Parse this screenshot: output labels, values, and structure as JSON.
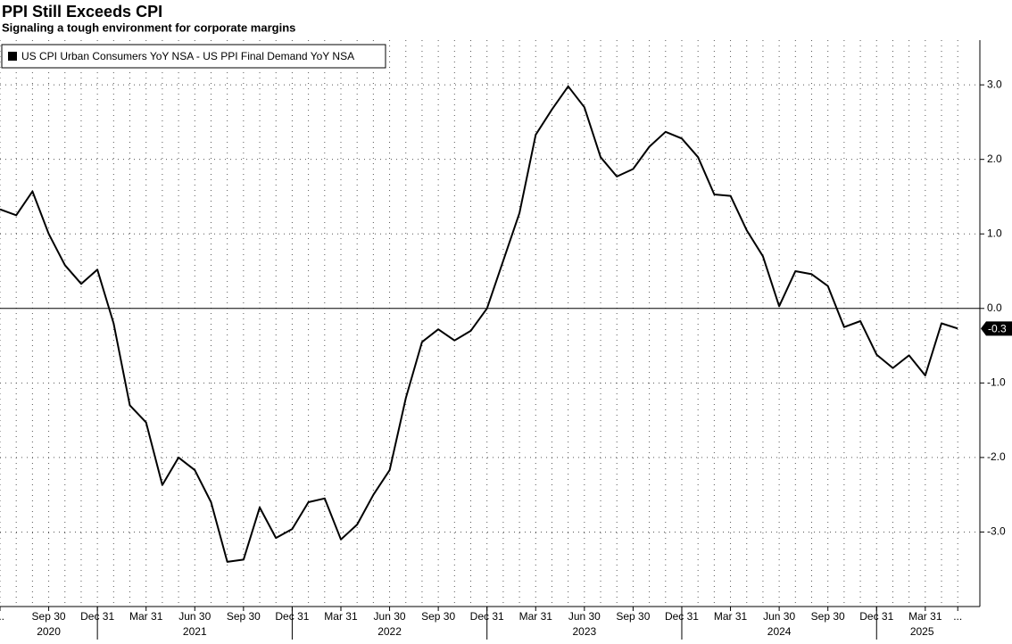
{
  "chart_data": {
    "type": "line",
    "title": "PPI Still Exceeds CPI",
    "subtitle": "Signaling a tough environment for corporate margins",
    "categories": [
      "...",
      null,
      null,
      "Sep 30",
      null,
      null,
      "Dec 31",
      null,
      null,
      "Mar 31",
      null,
      null,
      "Jun 30",
      null,
      null,
      "Sep 30",
      null,
      null,
      "Dec 31",
      null,
      null,
      "Mar 31",
      null,
      null,
      "Jun 30",
      null,
      null,
      "Sep 30",
      null,
      null,
      "Dec 31",
      null,
      null,
      "Mar 31",
      null,
      null,
      "Jun 30",
      null,
      null,
      "Sep 30",
      null,
      null,
      "Dec 31",
      null,
      null,
      "Mar 31",
      null,
      null,
      "Jun 30",
      null,
      null,
      "Sep 30",
      null,
      null,
      "Dec 31",
      null,
      null,
      "Mar 31",
      null,
      "..."
    ],
    "x_groups": [
      "2020",
      "2021",
      "2022",
      "2023",
      "2024",
      "2025"
    ],
    "series": [
      {
        "name": "US CPI Urban Consumers YoY NSA - US PPI Final Demand YoY NSA",
        "color": "#000000",
        "values": [
          1.33,
          1.25,
          1.57,
          1.0,
          0.58,
          0.33,
          0.52,
          -0.2,
          -1.3,
          -1.53,
          -2.37,
          -2.0,
          -2.17,
          -2.6,
          -3.4,
          -3.37,
          -2.67,
          -3.08,
          -2.96,
          -2.6,
          -2.55,
          -3.1,
          -2.9,
          -2.5,
          -2.17,
          -1.2,
          -0.45,
          -0.28,
          -0.43,
          -0.3,
          0.0,
          0.64,
          1.28,
          2.33,
          2.67,
          2.98,
          2.7,
          2.03,
          1.77,
          1.87,
          2.17,
          2.37,
          2.28,
          2.03,
          1.53,
          1.51,
          1.05,
          0.7,
          0.03,
          0.5,
          0.46,
          0.3,
          -0.25,
          -0.17,
          -0.62,
          -0.8,
          -0.63,
          -0.9,
          -0.2,
          -0.27
        ],
        "value_labels": [
          null,
          null,
          null,
          null,
          null,
          null,
          null,
          null,
          null,
          null,
          null,
          null,
          null,
          null,
          null,
          null,
          null,
          null,
          null,
          null,
          null,
          null,
          null,
          null,
          null,
          null,
          null,
          null,
          null,
          null,
          null,
          null,
          null,
          null,
          null,
          null,
          null,
          null,
          null,
          null,
          null,
          null,
          null,
          null,
          null,
          null,
          null,
          null,
          null,
          null,
          null,
          null,
          null,
          null,
          null,
          null,
          null,
          null,
          null,
          "-0.3"
        ]
      }
    ],
    "ylim": [
      -4.0,
      3.6
    ],
    "yticks": [
      {
        "value": -3,
        "label": "-3.0"
      },
      {
        "value": -2,
        "label": "-2.0"
      },
      {
        "value": -1,
        "label": "-1.0"
      },
      {
        "value": 0,
        "label": "0.0"
      },
      {
        "value": 1,
        "label": "1.0"
      },
      {
        "value": 2,
        "label": "2.0"
      },
      {
        "value": 3,
        "label": "3.0"
      }
    ],
    "grid": true
  }
}
